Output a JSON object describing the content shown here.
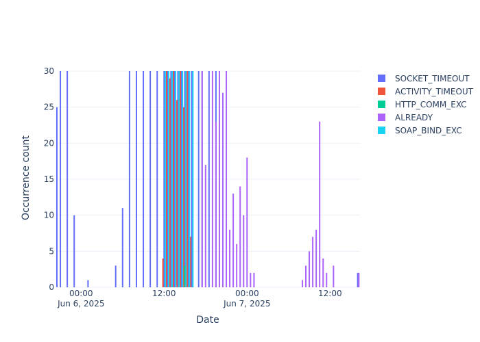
{
  "chart_data": {
    "type": "bar",
    "title": "",
    "xlabel": "Date",
    "ylabel": "Occurrence count",
    "ylim": [
      0,
      30
    ],
    "xlim": [
      "2025-06-05 20:30",
      "2025-06-07 16:20"
    ],
    "yticks": [
      "0",
      "5",
      "10",
      "15",
      "20",
      "25",
      "30"
    ],
    "xticks": [
      {
        "time": "2025-06-06 00:00",
        "line1": "00:00",
        "line2": "Jun 6, 2025"
      },
      {
        "time": "2025-06-06 12:00",
        "line1": "12:00",
        "line2": ""
      },
      {
        "time": "2025-06-07 00:00",
        "line1": "00:00",
        "line2": "Jun 7, 2025"
      },
      {
        "time": "2025-06-07 12:00",
        "line1": "12:00",
        "line2": ""
      }
    ],
    "grid": true,
    "legend_position": "right",
    "series": [
      {
        "name": "SOCKET_TIMEOUT",
        "color": "#636efa",
        "points": [
          [
            "2025-06-05 20:30",
            25
          ],
          [
            "2025-06-05 21:00",
            30
          ],
          [
            "2025-06-05 22:00",
            30
          ],
          [
            "2025-06-05 23:00",
            10
          ],
          [
            "2025-06-06 01:00",
            1
          ],
          [
            "2025-06-06 05:00",
            3
          ],
          [
            "2025-06-06 06:00",
            11
          ],
          [
            "2025-06-06 07:00",
            30
          ],
          [
            "2025-06-06 08:00",
            30
          ],
          [
            "2025-06-06 09:00",
            30
          ],
          [
            "2025-06-06 10:00",
            30
          ],
          [
            "2025-06-06 11:00",
            30
          ],
          [
            "2025-06-06 12:00",
            30
          ],
          [
            "2025-06-06 12:30",
            30
          ],
          [
            "2025-06-06 13:00",
            30
          ],
          [
            "2025-06-06 13:30",
            30
          ],
          [
            "2025-06-06 14:00",
            30
          ],
          [
            "2025-06-06 14:30",
            30
          ],
          [
            "2025-06-06 15:00",
            30
          ],
          [
            "2025-06-06 15:30",
            30
          ],
          [
            "2025-06-06 16:00",
            30
          ],
          [
            "2025-06-06 17:00",
            30
          ],
          [
            "2025-06-06 17:30",
            30
          ],
          [
            "2025-06-06 18:30",
            30
          ],
          [
            "2025-06-06 19:30",
            30
          ],
          [
            "2025-06-07 16:00",
            2
          ]
        ]
      },
      {
        "name": "ACTIVITY_TIMEOUT",
        "color": "#ef553b",
        "points": [
          [
            "2025-06-06 11:50",
            4
          ],
          [
            "2025-06-06 12:20",
            30
          ],
          [
            "2025-06-06 12:50",
            29
          ],
          [
            "2025-06-06 13:20",
            30
          ],
          [
            "2025-06-06 13:50",
            26
          ],
          [
            "2025-06-06 14:20",
            30
          ],
          [
            "2025-06-06 14:50",
            25
          ],
          [
            "2025-06-06 15:20",
            30
          ],
          [
            "2025-06-06 15:50",
            7
          ]
        ]
      },
      {
        "name": "HTTP_COMM_EXC",
        "color": "#00cc96",
        "points": [
          [
            "2025-06-06 15:00",
            3
          ]
        ]
      },
      {
        "name": "ALREADY",
        "color": "#ab63fa",
        "points": [
          [
            "2025-06-06 17:30",
            30
          ],
          [
            "2025-06-06 18:00",
            17
          ],
          [
            "2025-06-06 19:00",
            30
          ],
          [
            "2025-06-06 19:30",
            23
          ],
          [
            "2025-06-06 20:00",
            30
          ],
          [
            "2025-06-06 20:30",
            27
          ],
          [
            "2025-06-06 21:00",
            30
          ],
          [
            "2025-06-06 21:30",
            8
          ],
          [
            "2025-06-06 22:00",
            13
          ],
          [
            "2025-06-06 22:30",
            6
          ],
          [
            "2025-06-06 23:00",
            14
          ],
          [
            "2025-06-06 23:30",
            10
          ],
          [
            "2025-06-07 00:00",
            18
          ],
          [
            "2025-06-07 00:30",
            2
          ],
          [
            "2025-06-07 01:00",
            2
          ],
          [
            "2025-06-07 08:00",
            1
          ],
          [
            "2025-06-07 08:30",
            3
          ],
          [
            "2025-06-07 09:00",
            5
          ],
          [
            "2025-06-07 09:30",
            7
          ],
          [
            "2025-06-07 10:00",
            8
          ],
          [
            "2025-06-07 10:30",
            23
          ],
          [
            "2025-06-07 11:00",
            4
          ],
          [
            "2025-06-07 11:30",
            2
          ],
          [
            "2025-06-07 12:30",
            3
          ],
          [
            "2025-06-07 16:10",
            2
          ]
        ]
      },
      {
        "name": "SOAP_BIND_EXC",
        "color": "#19d3f3",
        "points": [
          [
            "2025-06-06 12:10",
            30
          ],
          [
            "2025-06-06 12:40",
            30
          ],
          [
            "2025-06-06 13:10",
            30
          ],
          [
            "2025-06-06 13:40",
            30
          ],
          [
            "2025-06-06 14:10",
            30
          ],
          [
            "2025-06-06 14:40",
            30
          ],
          [
            "2025-06-06 15:10",
            30
          ],
          [
            "2025-06-06 15:40",
            30
          ],
          [
            "2025-06-06 16:10",
            30
          ]
        ]
      }
    ]
  }
}
